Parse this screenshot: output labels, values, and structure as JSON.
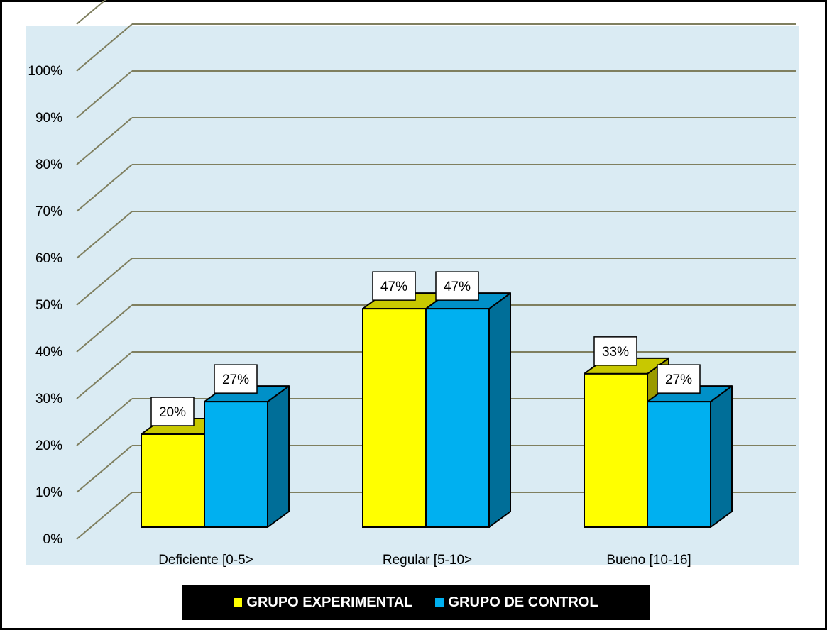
{
  "chart_data": {
    "type": "bar",
    "categories": [
      "Deficiente [0-5>",
      "Regular [5-10>",
      "Bueno [10-16]"
    ],
    "series": [
      {
        "name": "GRUPO EXPERIMENTAL",
        "values": [
          20,
          47,
          33
        ],
        "labels": [
          "20%",
          "47%",
          "33%"
        ],
        "color": "#FFFF00",
        "top_color": "#C8C800",
        "side_color": "#9A9A00"
      },
      {
        "name": "GRUPO DE CONTROL",
        "values": [
          27,
          47,
          27
        ],
        "labels": [
          "27%",
          "47%",
          "27%"
        ],
        "color": "#00B0F0",
        "top_color": "#0090C8",
        "side_color": "#006E98"
      }
    ],
    "y_ticks": [
      "0%",
      "10%",
      "20%",
      "30%",
      "40%",
      "50%",
      "60%",
      "70%",
      "80%",
      "90%",
      "100%"
    ],
    "ylim": [
      0,
      100
    ],
    "grid": true,
    "three_d": true,
    "legend_position": "bottom",
    "colors": {
      "plot_background": "#DAEBF3",
      "gridline": "#7F7F5F"
    }
  }
}
